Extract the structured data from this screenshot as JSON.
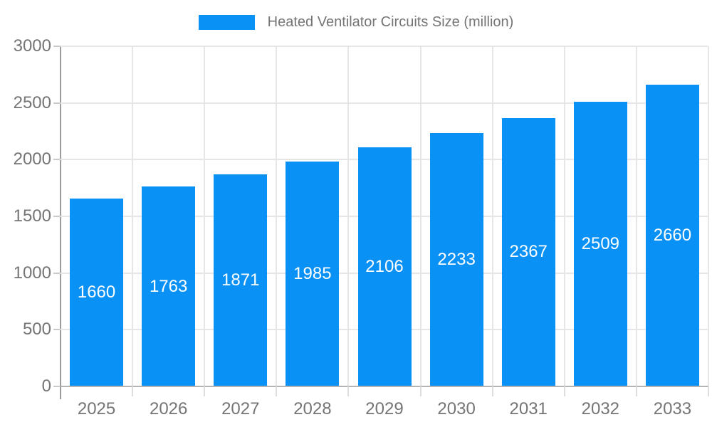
{
  "legend": {
    "label": "Heated Ventilator Circuits Size (million)"
  },
  "chart_data": {
    "type": "bar",
    "title": "",
    "xlabel": "",
    "ylabel": "",
    "categories": [
      "2025",
      "2026",
      "2027",
      "2028",
      "2029",
      "2030",
      "2031",
      "2032",
      "2033"
    ],
    "series": [
      {
        "name": "Heated Ventilator Circuits Size (million)",
        "values": [
          1660,
          1763,
          1871,
          1985,
          2106,
          2233,
          2367,
          2509,
          2660
        ]
      }
    ],
    "ylim": [
      0,
      3000
    ],
    "yticks": [
      0,
      500,
      1000,
      1500,
      2000,
      2500,
      3000
    ],
    "grid": true,
    "legend_position": "top-center",
    "bar_color": "#0a91f5",
    "value_label_color": "#ffffff",
    "axis_text_color": "#757575",
    "grid_color": "#e6e6e6"
  }
}
